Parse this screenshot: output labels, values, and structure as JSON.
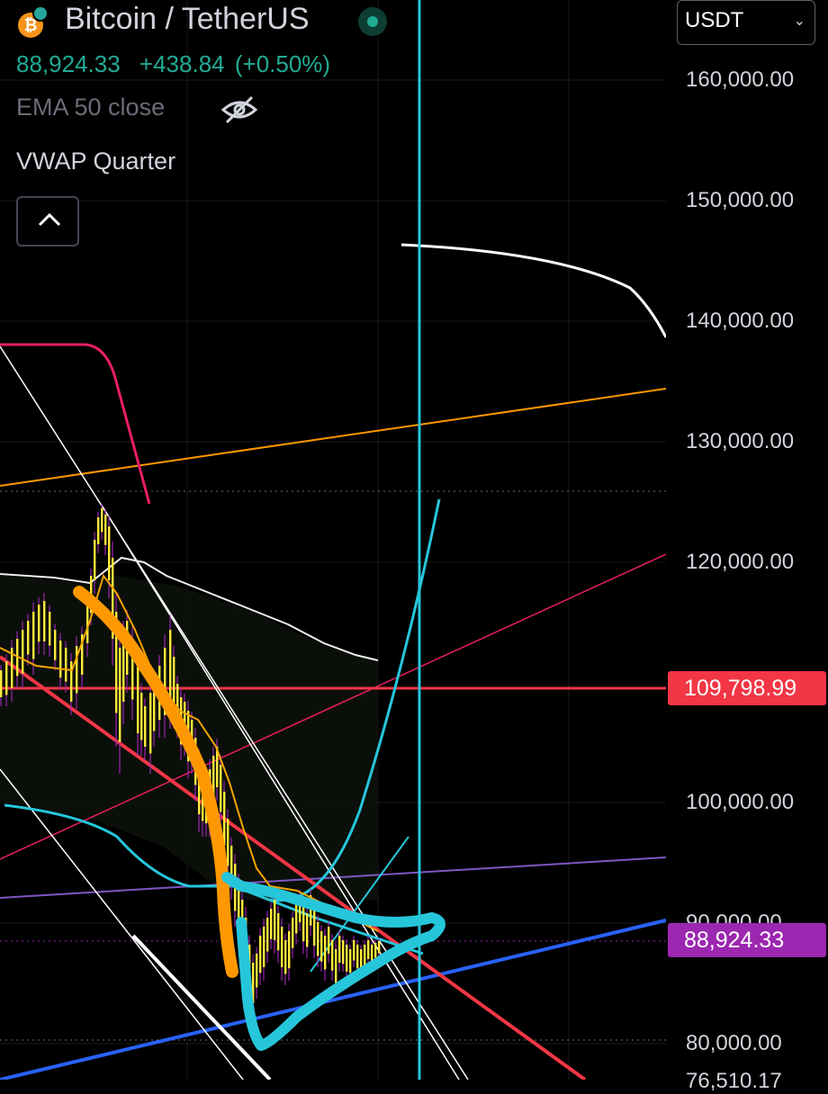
{
  "symbol": {
    "name": "Bitcoin / TetherUS",
    "coin_icon": "bitcoin-icon",
    "status": "market-open"
  },
  "quote": {
    "price": "88,924.33",
    "change": "+438.84",
    "change_pct": "(+0.50%)",
    "color": "#22ab94"
  },
  "indicators": {
    "ema": "EMA 50 close",
    "ema_visibility_icon": "eye-off-icon",
    "vwap": "VWAP Quarter",
    "collapse_icon": "chevron-up-icon"
  },
  "currency_select": {
    "selected": "USDT"
  },
  "price_axis": {
    "ticks": [
      "160,000.00",
      "150,000.00",
      "140,000.00",
      "130,000.00",
      "120,000.00",
      "100,000.00",
      "80,000.00"
    ],
    "partial_tick": "90,000.00",
    "bottom_partial_tick": "76,510.17",
    "levels": [
      {
        "value": "109,798.99",
        "color": "#f23645"
      },
      {
        "value": "88,924.33",
        "color": "#9c27b0"
      }
    ]
  },
  "colors": {
    "up_candle": "#ffeb3b",
    "wick": "#9c27b0",
    "ema": "#f7a600",
    "vwap": "#ffffff",
    "cyan_drawing": "#26c6da",
    "orange_drawing": "#ff9800",
    "red_line": "#f23645",
    "blue_line": "#2962ff",
    "magenta_line": "#e91e63"
  }
}
